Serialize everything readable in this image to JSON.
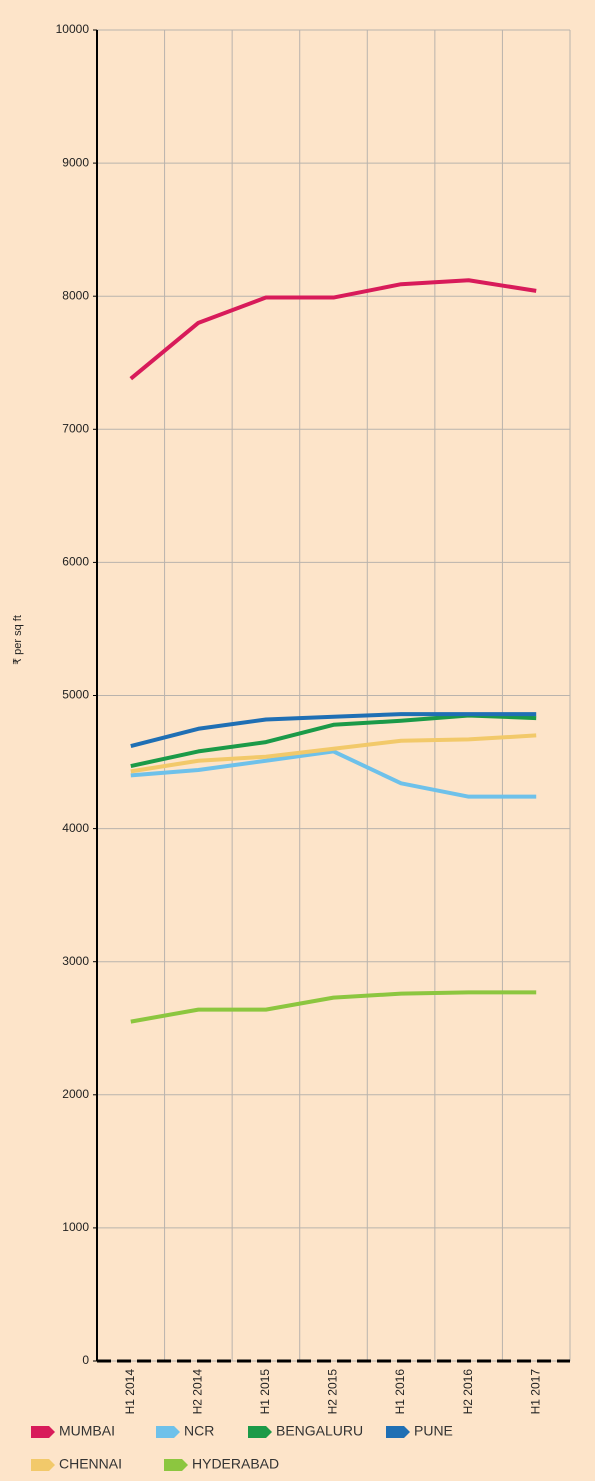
{
  "chart_data": {
    "type": "line",
    "y_label": "₹ per sq ft",
    "categories": [
      "H1 2014",
      "H2 2014",
      "H1 2015",
      "H2 2015",
      "H1 2016",
      "H2 2016",
      "H1 2017"
    ],
    "series": [
      {
        "name": "MUMBAI",
        "color": "#d81b5a",
        "values": [
          7380,
          7800,
          7990,
          7990,
          8090,
          8120,
          8040
        ]
      },
      {
        "name": "NCR",
        "color": "#6ec1ea",
        "values": [
          4400,
          4440,
          4510,
          4580,
          4340,
          4240,
          4240
        ]
      },
      {
        "name": "BENGALURU",
        "color": "#1b9a48",
        "values": [
          4470,
          4580,
          4650,
          4780,
          4810,
          4850,
          4830
        ]
      },
      {
        "name": "PUNE",
        "color": "#1f6fb4",
        "values": [
          4620,
          4750,
          4820,
          4840,
          4860,
          4860,
          4860
        ]
      },
      {
        "name": "CHENNAI",
        "color": "#f2c96a",
        "values": [
          4430,
          4510,
          4540,
          4600,
          4660,
          4670,
          4700
        ]
      },
      {
        "name": "HYDERABAD",
        "color": "#8cc63f",
        "values": [
          2550,
          2640,
          2640,
          2730,
          2760,
          2770,
          2770
        ]
      }
    ],
    "ylim": [
      0,
      10000
    ],
    "yticks": [
      0,
      1000,
      2000,
      3000,
      4000,
      5000,
      6000,
      7000,
      8000,
      9000,
      10000
    ],
    "grid": true,
    "legend": "bottom"
  }
}
